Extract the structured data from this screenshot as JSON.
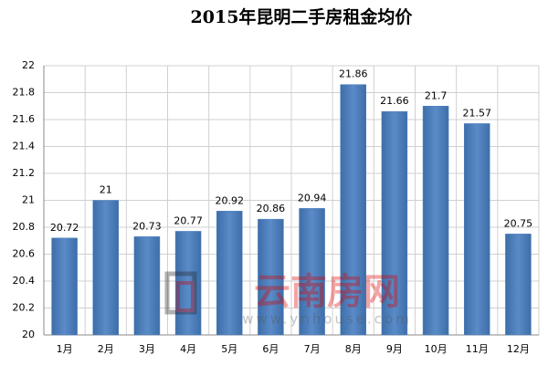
{
  "chart_data": {
    "type": "bar",
    "title": "2015年昆明二手房租金均价",
    "categories": [
      "1月",
      "2月",
      "3月",
      "4月",
      "5月",
      "6月",
      "7月",
      "8月",
      "9月",
      "10月",
      "11月",
      "12月"
    ],
    "values": [
      20.72,
      21,
      20.73,
      20.77,
      20.92,
      20.86,
      20.94,
      21.86,
      21.66,
      21.7,
      21.57,
      20.75
    ],
    "color": "#4f81bd",
    "ylim": [
      20,
      22
    ],
    "yticks": [
      20,
      20.2,
      20.4,
      20.6,
      20.8,
      21,
      21.2,
      21.4,
      21.6,
      21.8,
      22
    ],
    "grid": true,
    "watermark": {
      "name": "云南房网",
      "url": "www.ynhouse.com"
    }
  }
}
